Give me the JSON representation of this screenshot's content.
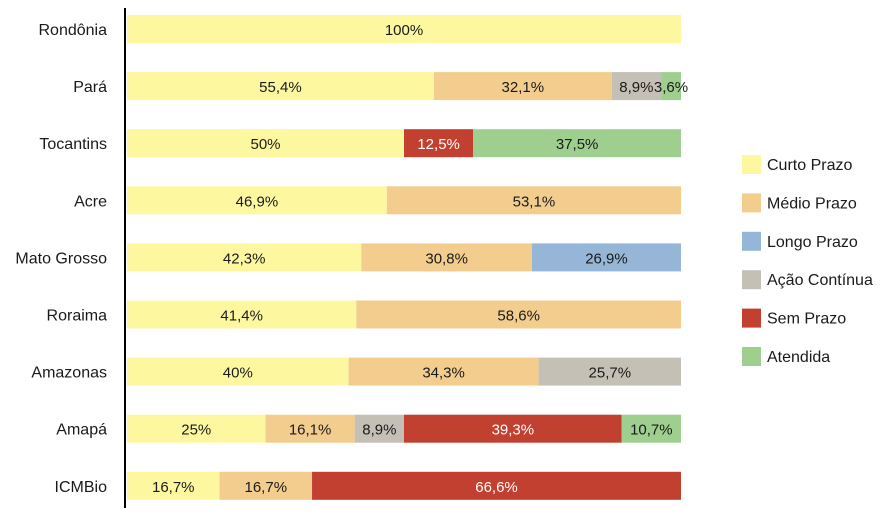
{
  "colors": {
    "Curto Prazo": "#fdf8a0",
    "Médio Prazo": "#f3cd8e",
    "Longo Prazo": "#95b6d6",
    "Ação Contínua": "#c5c0b5",
    "Sem Prazo": "#c2402f",
    "Atendida": "#9fcf8e"
  },
  "chart_data": {
    "type": "bar",
    "orientation": "horizontal",
    "stacked": true,
    "xlim": [
      0,
      100
    ],
    "grid": false,
    "legend_position": "right",
    "legend": [
      "Curto Prazo",
      "Médio Prazo",
      "Longo Prazo",
      "Ação Contínua",
      "Sem Prazo",
      "Atendida"
    ],
    "categories": [
      "Rondônia",
      "Pará",
      "Tocantins",
      "Acre",
      "Mato Grosso",
      "Roraima",
      "Amazonas",
      "Amapá",
      "ICMBio"
    ],
    "rows": [
      {
        "name": "Rondônia",
        "segments": [
          {
            "series": "Curto Prazo",
            "value": 100,
            "label": "100%"
          }
        ]
      },
      {
        "name": "Pará",
        "segments": [
          {
            "series": "Curto Prazo",
            "value": 55.4,
            "label": "55,4%"
          },
          {
            "series": "Médio Prazo",
            "value": 32.1,
            "label": "32,1%"
          },
          {
            "series": "Ação Contínua",
            "value": 8.9,
            "label": "8,9%"
          },
          {
            "series": "Atendida",
            "value": 3.6,
            "label": "3,6%"
          }
        ]
      },
      {
        "name": "Tocantins",
        "segments": [
          {
            "series": "Curto Prazo",
            "value": 50,
            "label": "50%"
          },
          {
            "series": "Sem Prazo",
            "value": 12.5,
            "label": "12,5%"
          },
          {
            "series": "Atendida",
            "value": 37.5,
            "label": "37,5%"
          }
        ]
      },
      {
        "name": "Acre",
        "segments": [
          {
            "series": "Curto Prazo",
            "value": 46.9,
            "label": "46,9%"
          },
          {
            "series": "Médio Prazo",
            "value": 53.1,
            "label": "53,1%"
          }
        ]
      },
      {
        "name": "Mato Grosso",
        "segments": [
          {
            "series": "Curto Prazo",
            "value": 42.3,
            "label": "42,3%"
          },
          {
            "series": "Médio Prazo",
            "value": 30.8,
            "label": "30,8%"
          },
          {
            "series": "Longo Prazo",
            "value": 26.9,
            "label": "26,9%"
          }
        ]
      },
      {
        "name": "Roraima",
        "segments": [
          {
            "series": "Curto Prazo",
            "value": 41.4,
            "label": "41,4%"
          },
          {
            "series": "Médio Prazo",
            "value": 58.6,
            "label": "58,6%"
          }
        ]
      },
      {
        "name": "Amazonas",
        "segments": [
          {
            "series": "Curto Prazo",
            "value": 40,
            "label": "40%"
          },
          {
            "series": "Médio Prazo",
            "value": 34.3,
            "label": "34,3%"
          },
          {
            "series": "Ação Contínua",
            "value": 25.7,
            "label": "25,7%"
          }
        ]
      },
      {
        "name": "Amapá",
        "segments": [
          {
            "series": "Curto Prazo",
            "value": 25,
            "label": "25%"
          },
          {
            "series": "Médio Prazo",
            "value": 16.1,
            "label": "16,1%"
          },
          {
            "series": "Ação Contínua",
            "value": 8.9,
            "label": "8,9%"
          },
          {
            "series": "Sem Prazo",
            "value": 39.3,
            "label": "39,3%"
          },
          {
            "series": "Atendida",
            "value": 10.7,
            "label": "10,7%"
          }
        ]
      },
      {
        "name": "ICMBio",
        "segments": [
          {
            "series": "Curto Prazo",
            "value": 16.7,
            "label": "16,7%"
          },
          {
            "series": "Médio Prazo",
            "value": 16.7,
            "label": "16,7%"
          },
          {
            "series": "Sem Prazo",
            "value": 66.6,
            "label": "66,6%"
          }
        ]
      }
    ]
  }
}
